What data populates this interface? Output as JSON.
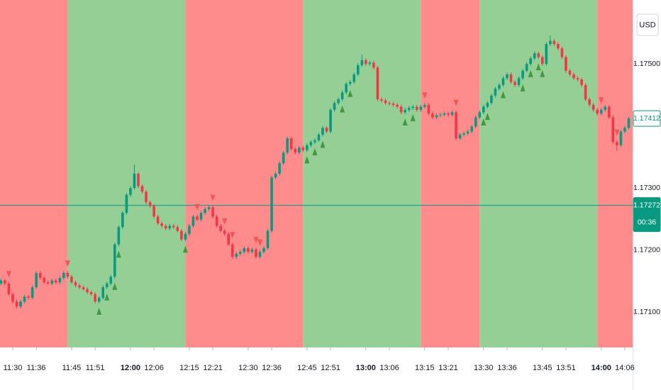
{
  "chart_data": {
    "type": "candlestick",
    "currency": "USD",
    "x": [
      687,
      688,
      689,
      690,
      691,
      692,
      693,
      694,
      695,
      696,
      697,
      698,
      699,
      700,
      701,
      702,
      703,
      704,
      705,
      706,
      707,
      708,
      709,
      710,
      711,
      712,
      713,
      714,
      715,
      716,
      717,
      718,
      719,
      720,
      721,
      722,
      723,
      724,
      725,
      726,
      727,
      728,
      729,
      730,
      731,
      732,
      733,
      734,
      735,
      736,
      737,
      738,
      739,
      740,
      741,
      742,
      743,
      744,
      745,
      746,
      747,
      748,
      749,
      750,
      751,
      752,
      753,
      754,
      755,
      756,
      757,
      758,
      759,
      760,
      761,
      762,
      763,
      764,
      765,
      766,
      767,
      768,
      769,
      770,
      771,
      772,
      773,
      774,
      775,
      776,
      777,
      778,
      779,
      780,
      781,
      782,
      783,
      784,
      785,
      786,
      787,
      788,
      789,
      790,
      791,
      792,
      793,
      794,
      795,
      796,
      797,
      798,
      799,
      800,
      801,
      802,
      803,
      804,
      805,
      806,
      807,
      808,
      809,
      810,
      811,
      812,
      813,
      814,
      815,
      816,
      817,
      818,
      819,
      820,
      821,
      822,
      823,
      824,
      825,
      826,
      827,
      828,
      829,
      830,
      831,
      832,
      833,
      834,
      835,
      836,
      837,
      838,
      839,
      840,
      841,
      842,
      843,
      844,
      845,
      846,
      847
    ],
    "open": [
      1.17146,
      1.17151,
      1.17146,
      1.17129,
      1.17117,
      1.17109,
      1.17117,
      1.17125,
      1.17123,
      1.1714,
      1.17163,
      1.17155,
      1.17148,
      1.17146,
      1.17151,
      1.17148,
      1.17155,
      1.17163,
      1.17157,
      1.17148,
      1.17143,
      1.1714,
      1.17137,
      1.17132,
      1.17129,
      1.17117,
      1.17123,
      1.1714,
      1.17146,
      1.17157,
      1.17209,
      1.17237,
      1.1726,
      1.17289,
      1.173,
      1.17323,
      1.17303,
      1.17294,
      1.17277,
      1.17271,
      1.17254,
      1.17243,
      1.17239,
      1.17235,
      1.17239,
      1.17237,
      1.17231,
      1.17217,
      1.17226,
      1.17239,
      1.17254,
      1.17249,
      1.1726,
      1.17266,
      1.17269,
      1.17254,
      1.17239,
      1.17231,
      1.17226,
      1.17209,
      1.17189,
      1.17194,
      1.17197,
      1.17203,
      1.17197,
      1.17201,
      1.17189,
      1.17197,
      1.17203,
      1.17231,
      1.17317,
      1.17323,
      1.1734,
      1.17357,
      1.1738,
      1.17363,
      1.17357,
      1.17365,
      1.17361,
      1.17369,
      1.17374,
      1.17377,
      1.17386,
      1.17397,
      1.17391,
      1.17426,
      1.17437,
      1.17443,
      1.17454,
      1.17468,
      1.17471,
      1.17483,
      1.17498,
      1.17506,
      1.175,
      1.17502,
      1.17494,
      1.17443,
      1.17441,
      1.17437,
      1.17436,
      1.17434,
      1.17431,
      1.17422,
      1.17426,
      1.17429,
      1.17431,
      1.17426,
      1.17431,
      1.17434,
      1.1742,
      1.17414,
      1.17417,
      1.17418,
      1.1742,
      1.17418,
      1.17422,
      1.1738,
      1.17386,
      1.17388,
      1.17391,
      1.17399,
      1.17414,
      1.17422,
      1.17431,
      1.17437,
      1.17449,
      1.1746,
      1.17466,
      1.17477,
      1.17483,
      1.17471,
      1.17466,
      1.17477,
      1.17489,
      1.175,
      1.17509,
      1.17517,
      1.17511,
      1.175,
      1.17532,
      1.17537,
      1.17532,
      1.17525,
      1.17511,
      1.17489,
      1.17483,
      1.17477,
      1.17475,
      1.17466,
      1.17443,
      1.17434,
      1.17426,
      1.1742,
      1.17426,
      1.17431,
      1.17414,
      1.17374,
      1.17369,
      1.17391,
      1.17397
    ],
    "high": [
      1.17154,
      1.17154,
      1.17149,
      1.17132,
      1.1712,
      1.1712,
      1.17128,
      1.17128,
      1.17143,
      1.17166,
      1.17166,
      1.17158,
      1.17151,
      1.17154,
      1.17154,
      1.17158,
      1.17166,
      1.17166,
      1.1716,
      1.17151,
      1.17146,
      1.17143,
      1.1714,
      1.17135,
      1.17132,
      1.17126,
      1.17143,
      1.17149,
      1.1716,
      1.17212,
      1.1724,
      1.17263,
      1.17292,
      1.17303,
      1.17338,
      1.17326,
      1.17306,
      1.17297,
      1.1728,
      1.17274,
      1.17257,
      1.17246,
      1.17242,
      1.17242,
      1.17242,
      1.1724,
      1.17234,
      1.17229,
      1.17242,
      1.17257,
      1.17257,
      1.17263,
      1.17269,
      1.17272,
      1.17272,
      1.17257,
      1.17242,
      1.17234,
      1.17229,
      1.17212,
      1.17197,
      1.172,
      1.17206,
      1.17206,
      1.17204,
      1.17204,
      1.172,
      1.17206,
      1.17234,
      1.1732,
      1.17326,
      1.17343,
      1.1736,
      1.17383,
      1.17383,
      1.17366,
      1.17368,
      1.17368,
      1.17372,
      1.17377,
      1.1738,
      1.17389,
      1.174,
      1.174,
      1.17429,
      1.1744,
      1.17446,
      1.17457,
      1.17471,
      1.17474,
      1.17486,
      1.17501,
      1.17515,
      1.17509,
      1.17505,
      1.17505,
      1.17497,
      1.17446,
      1.17444,
      1.1744,
      1.17439,
      1.17437,
      1.17434,
      1.17429,
      1.17432,
      1.17434,
      1.17434,
      1.17434,
      1.17437,
      1.17437,
      1.17423,
      1.1742,
      1.17421,
      1.17423,
      1.17423,
      1.17425,
      1.17425,
      1.17389,
      1.17391,
      1.17394,
      1.17402,
      1.17417,
      1.17425,
      1.17434,
      1.1744,
      1.17452,
      1.17463,
      1.17469,
      1.1748,
      1.17486,
      1.17486,
      1.17474,
      1.1748,
      1.17492,
      1.17503,
      1.17512,
      1.1752,
      1.1752,
      1.17514,
      1.17535,
      1.17546,
      1.1754,
      1.17535,
      1.17528,
      1.17514,
      1.17492,
      1.17486,
      1.1748,
      1.17478,
      1.17469,
      1.17446,
      1.17437,
      1.17429,
      1.17429,
      1.17434,
      1.17434,
      1.17417,
      1.17377,
      1.17394,
      1.174,
      1.17415
    ],
    "low": [
      1.17143,
      1.17143,
      1.17126,
      1.17114,
      1.17106,
      1.17106,
      1.17114,
      1.1712,
      1.1712,
      1.17137,
      1.17152,
      1.17145,
      1.17143,
      1.17143,
      1.17145,
      1.17145,
      1.17152,
      1.17154,
      1.17145,
      1.1714,
      1.17137,
      1.17134,
      1.17129,
      1.17126,
      1.17114,
      1.17114,
      1.1712,
      1.17137,
      1.17143,
      1.17154,
      1.17206,
      1.17234,
      1.17257,
      1.17286,
      1.17297,
      1.173,
      1.17291,
      1.17274,
      1.17268,
      1.17251,
      1.1724,
      1.17236,
      1.17232,
      1.17232,
      1.17234,
      1.17228,
      1.17214,
      1.17214,
      1.17223,
      1.17236,
      1.17246,
      1.17246,
      1.17257,
      1.17263,
      1.17251,
      1.17236,
      1.17228,
      1.17223,
      1.17206,
      1.17186,
      1.17186,
      1.17191,
      1.17194,
      1.17194,
      1.17194,
      1.17186,
      1.17186,
      1.17194,
      1.172,
      1.17228,
      1.17314,
      1.1732,
      1.17337,
      1.17354,
      1.1736,
      1.17354,
      1.17354,
      1.17358,
      1.17358,
      1.17366,
      1.17371,
      1.17374,
      1.17383,
      1.17388,
      1.17388,
      1.17423,
      1.17434,
      1.1744,
      1.17451,
      1.17465,
      1.17468,
      1.1748,
      1.17495,
      1.17497,
      1.17497,
      1.17491,
      1.1744,
      1.17438,
      1.17434,
      1.17433,
      1.17431,
      1.17428,
      1.17419,
      1.17419,
      1.17423,
      1.17426,
      1.17423,
      1.17423,
      1.17428,
      1.17417,
      1.17411,
      1.17411,
      1.17414,
      1.17415,
      1.17415,
      1.17415,
      1.17377,
      1.17377,
      1.17383,
      1.17385,
      1.17388,
      1.17396,
      1.17411,
      1.17419,
      1.17428,
      1.17434,
      1.17446,
      1.17457,
      1.17463,
      1.17474,
      1.17468,
      1.17463,
      1.17463,
      1.17474,
      1.17486,
      1.17497,
      1.17506,
      1.17508,
      1.17497,
      1.17497,
      1.17529,
      1.17529,
      1.17522,
      1.17508,
      1.17486,
      1.1748,
      1.17474,
      1.17472,
      1.17463,
      1.1744,
      1.17431,
      1.17423,
      1.17417,
      1.17417,
      1.17423,
      1.17411,
      1.17371,
      1.1736,
      1.17366,
      1.17388,
      1.17394
    ],
    "close": [
      1.17151,
      1.17146,
      1.17129,
      1.17117,
      1.17109,
      1.17117,
      1.17125,
      1.17123,
      1.1714,
      1.17163,
      1.17155,
      1.17148,
      1.17146,
      1.17151,
      1.17148,
      1.17155,
      1.17163,
      1.17157,
      1.17148,
      1.17143,
      1.1714,
      1.17137,
      1.17132,
      1.17129,
      1.17117,
      1.17123,
      1.1714,
      1.17146,
      1.17157,
      1.17209,
      1.17237,
      1.1726,
      1.17289,
      1.173,
      1.17323,
      1.17303,
      1.17294,
      1.17277,
      1.17271,
      1.17254,
      1.17243,
      1.17239,
      1.17235,
      1.17239,
      1.17237,
      1.17231,
      1.17217,
      1.17226,
      1.17239,
      1.17254,
      1.17249,
      1.1726,
      1.17266,
      1.17269,
      1.17254,
      1.17239,
      1.17231,
      1.17226,
      1.17209,
      1.17189,
      1.17194,
      1.17197,
      1.17203,
      1.17197,
      1.17201,
      1.17189,
      1.17197,
      1.17203,
      1.17231,
      1.17317,
      1.17323,
      1.1734,
      1.17357,
      1.1738,
      1.17363,
      1.17357,
      1.17365,
      1.17361,
      1.17369,
      1.17374,
      1.17377,
      1.17386,
      1.17397,
      1.17391,
      1.17426,
      1.17437,
      1.17443,
      1.17454,
      1.17468,
      1.17471,
      1.17483,
      1.17498,
      1.17506,
      1.175,
      1.17502,
      1.17494,
      1.17443,
      1.17441,
      1.17437,
      1.17436,
      1.17434,
      1.17431,
      1.17422,
      1.17426,
      1.17429,
      1.17431,
      1.17426,
      1.17431,
      1.17434,
      1.1742,
      1.17414,
      1.17417,
      1.17418,
      1.1742,
      1.17418,
      1.17422,
      1.1738,
      1.17386,
      1.17388,
      1.17391,
      1.17399,
      1.17414,
      1.17422,
      1.17431,
      1.17437,
      1.17449,
      1.1746,
      1.17466,
      1.17477,
      1.17483,
      1.17471,
      1.17466,
      1.17477,
      1.17489,
      1.175,
      1.17509,
      1.17517,
      1.17511,
      1.175,
      1.17532,
      1.17537,
      1.17532,
      1.17525,
      1.17511,
      1.17489,
      1.17483,
      1.17477,
      1.17475,
      1.17466,
      1.17443,
      1.17434,
      1.17426,
      1.1742,
      1.17426,
      1.17431,
      1.17414,
      1.17374,
      1.17369,
      1.17391,
      1.17397,
      1.17412
    ],
    "up_color": "#089981",
    "down_color": "#f23645",
    "xlim": [
      686.75,
      848
    ],
    "xticks": [
      {
        "value": 690,
        "label": "11:30"
      },
      {
        "value": 696,
        "label": "11:36"
      },
      {
        "value": 705,
        "label": "11:45"
      },
      {
        "value": 711,
        "label": "11:51"
      },
      {
        "value": 720,
        "label": "12:00"
      },
      {
        "value": 726,
        "label": "12:06"
      },
      {
        "value": 735,
        "label": "12:15"
      },
      {
        "value": 741,
        "label": "12:21"
      },
      {
        "value": 750,
        "label": "12:30"
      },
      {
        "value": 756,
        "label": "12:36"
      },
      {
        "value": 765,
        "label": "12:45"
      },
      {
        "value": 771,
        "label": "12:51"
      },
      {
        "value": 780,
        "label": "13:00"
      },
      {
        "value": 786,
        "label": "13:06"
      },
      {
        "value": 795,
        "label": "13:15"
      },
      {
        "value": 801,
        "label": "13:21"
      },
      {
        "value": 810,
        "label": "13:30"
      },
      {
        "value": 816,
        "label": "13:36"
      },
      {
        "value": 825,
        "label": "13:45"
      },
      {
        "value": 831,
        "label": "13:51"
      },
      {
        "value": 840,
        "label": "14:00"
      },
      {
        "value": 846,
        "label": "14:06"
      }
    ],
    "ylim": [
      1.17043,
      1.17603
    ],
    "yticks": [
      {
        "value": 1.171,
        "label": "1.17100"
      },
      {
        "value": 1.172,
        "label": "1.17200"
      },
      {
        "value": 1.173,
        "label": "1.17300"
      },
      {
        "value": 1.175,
        "label": "1.17500"
      }
    ],
    "sessions": [
      {
        "start": 686.75,
        "end": 704,
        "color": "#ff8c8c"
      },
      {
        "start": 704,
        "end": 734,
        "color": "#96cf96"
      },
      {
        "start": 734,
        "end": 764,
        "color": "#ff8c8c"
      },
      {
        "start": 764,
        "end": 794,
        "color": "#96cf96"
      },
      {
        "start": 794,
        "end": 809,
        "color": "#ff8c8c"
      },
      {
        "start": 809,
        "end": 839,
        "color": "#96cf96"
      },
      {
        "start": 839,
        "end": 848,
        "color": "#ff8c8c"
      }
    ],
    "buy_signals": [
      712,
      714,
      716,
      717,
      734,
      765,
      767,
      769,
      774,
      776,
      790,
      792,
      810,
      811,
      815,
      820,
      822,
      824,
      825
    ],
    "sell_signals": [
      689,
      704,
      737,
      741,
      744,
      746,
      752,
      753,
      795,
      803,
      840,
      844
    ],
    "buy_color": "#3f9a3f",
    "sell_color": "#f25555",
    "price_lines": [
      {
        "value": 1.17412,
        "color": "#089981",
        "filled": false,
        "line": false
      },
      {
        "value": 1.17272,
        "color": "#089981",
        "filled": true,
        "line": true
      }
    ],
    "countdown": "00:36"
  }
}
